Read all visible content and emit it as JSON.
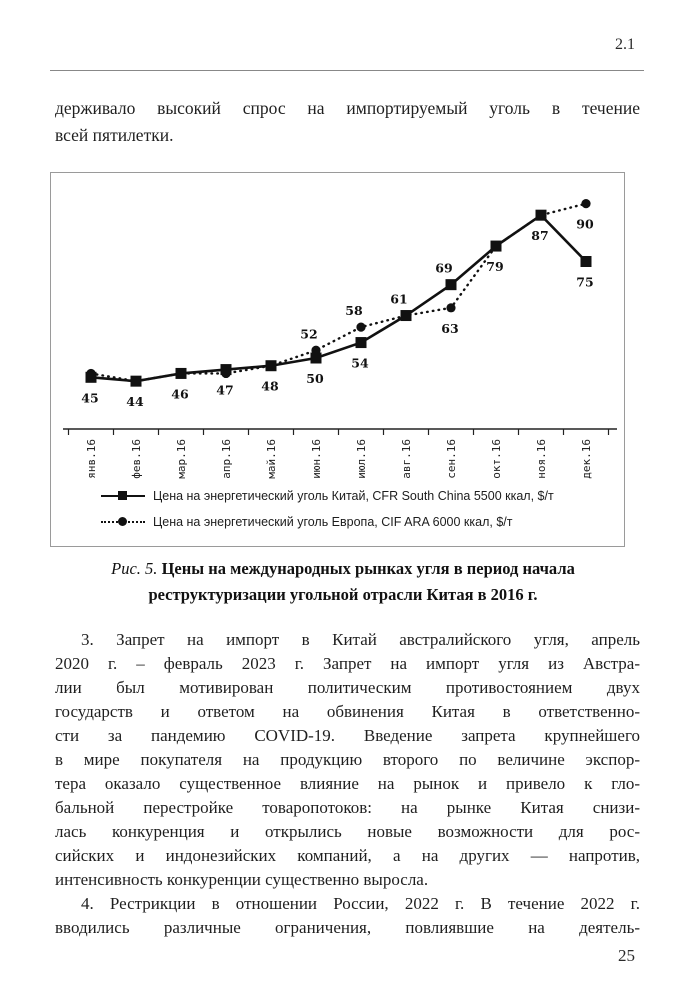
{
  "page": {
    "section_number": "2.1",
    "page_number": "25"
  },
  "intro": {
    "lines": [
      "держивало высокий спрос на импортируемый уголь в течение",
      "всей пятилетки."
    ]
  },
  "figure_caption": {
    "prefix": "Рис. 5.",
    "line1": "Цены на международных рынках угля в период начала",
    "line2": "реструктуризации угольной отрасли Китая в 2016 г."
  },
  "chart_data": {
    "type": "line",
    "categories": [
      "янв.16",
      "фев.16",
      "мар.16",
      "апр.16",
      "май.16",
      "июн.16",
      "июл.16",
      "авг.16",
      "сен.16",
      "окт.16",
      "ноя.16",
      "дек.16"
    ],
    "series": [
      {
        "name": "Цена на энергетический уголь Китай, CFR South China 5500 ккал, $/т",
        "marker": "square",
        "line_style": "solid",
        "values": [
          45,
          44,
          46,
          47,
          48,
          50,
          54,
          61,
          69,
          79,
          87,
          75
        ],
        "point_labels": [
          {
            "index": 0,
            "position": "below"
          },
          {
            "index": 1,
            "position": "below"
          },
          {
            "index": 2,
            "position": "below"
          },
          {
            "index": 3,
            "position": "below"
          },
          {
            "index": 4,
            "position": "below"
          },
          {
            "index": 5,
            "position": "below"
          },
          {
            "index": 6,
            "position": "below"
          },
          {
            "index": 7,
            "position": "above"
          },
          {
            "index": 8,
            "position": "above"
          },
          {
            "index": 9,
            "position": "below"
          },
          {
            "index": 10,
            "position": "below"
          },
          {
            "index": 11,
            "position": "below"
          }
        ]
      },
      {
        "name": "Цена на энергетический уголь Европа, CIF ARA 6000 ккал, $/т",
        "marker": "circle",
        "line_style": "dotted",
        "values": [
          46,
          44,
          46,
          46,
          48,
          52,
          58,
          61,
          63,
          79,
          87,
          90
        ],
        "point_labels": [
          {
            "index": 5,
            "position": "above"
          },
          {
            "index": 6,
            "position": "above"
          },
          {
            "index": 8,
            "position": "below"
          },
          {
            "index": 11,
            "position": "below"
          }
        ]
      }
    ],
    "ylim": [
      40,
      95
    ],
    "grid": false,
    "legend_position": "bottom-left",
    "ink_color": "#111111"
  },
  "paragraph_3": {
    "lines": [
      "3. Запрет на импорт в Китай австралийского угля, апрель",
      "2020 г. – февраль 2023 г. Запрет на импорт угля из Австра-",
      "лии был мотивирован политическим противостоянием двух",
      "государств и ответом на обвинения Китая в ответственно-",
      "сти за пандемию COVID-19. Введение запрета крупнейшего",
      "в мире покупателя на продукцию второго по величине экспор-",
      "тера оказало существенное влияние на рынок и привело к гло-",
      "бальной перестройке товаропотоков: на рынке Китая снизи-",
      "лась конкуренция и открылись новые возможности для рос-",
      "сийских и индонезийских компаний, а на других — напротив,",
      "интенсивность конкуренции существенно выросла."
    ]
  },
  "paragraph_4": {
    "lines": [
      "4. Рестрикции в отношении России, 2022 г. В течение 2022 г.",
      "вводились различные ограничения, повлиявшие на деятель-"
    ]
  }
}
